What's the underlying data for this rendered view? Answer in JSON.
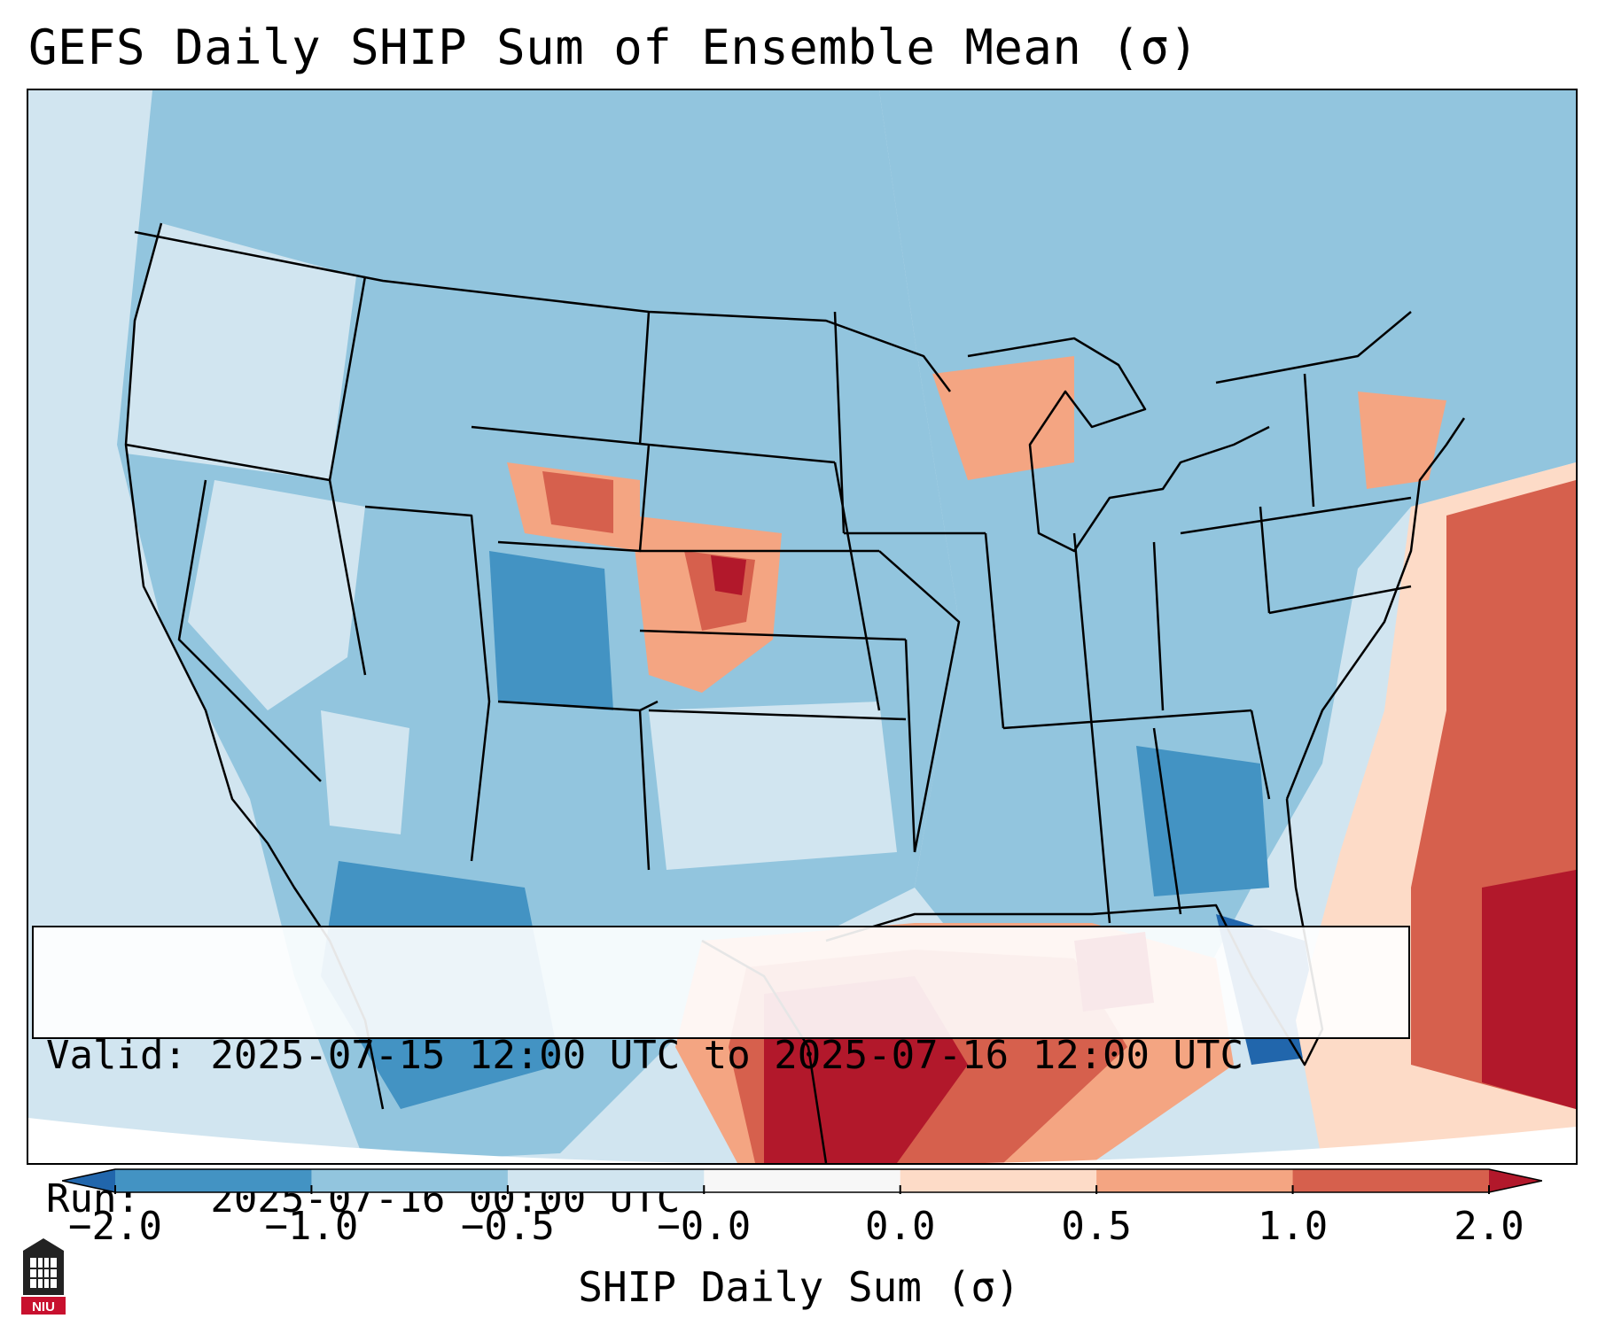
{
  "title": "GEFS Daily SHIP Sum of Ensemble Mean (σ)",
  "info_box": {
    "valid_line": "Valid: 2025-07-15 12:00 UTC to 2025-07-16 12:00 UTC",
    "run_line": "Run:   2025-07-16 00:00 UTC"
  },
  "colorbar": {
    "label": "SHIP Daily Sum (σ)",
    "tick_labels": [
      "−2.0",
      "−1.0",
      "−0.5",
      "−0.0",
      "0.0",
      "0.5",
      "1.0",
      "2.0"
    ],
    "bins": [
      {
        "range": "-2.0 to -1.0",
        "color": "#4393c3"
      },
      {
        "range": "-1.0 to -0.5",
        "color": "#92c5de"
      },
      {
        "range": "-0.5 to -0.0",
        "color": "#d1e5f0"
      },
      {
        "range": "-0.0 to 0.0",
        "color": "#f7f7f7"
      },
      {
        "range": "0.0 to 0.5",
        "color": "#fddbc7"
      },
      {
        "range": "0.5 to 1.0",
        "color": "#f4a582"
      },
      {
        "range": "1.0 to 2.0",
        "color": "#d6604d"
      }
    ],
    "extend_low_color": "#2166ac",
    "extend_high_color": "#b2182b"
  },
  "logo": {
    "text": "NIU",
    "icon": "niu-logo-icon"
  },
  "map": {
    "projection": "Lambert conformal, CONUS",
    "background_color": "#d1e5f0",
    "border_color": "#000000"
  }
}
